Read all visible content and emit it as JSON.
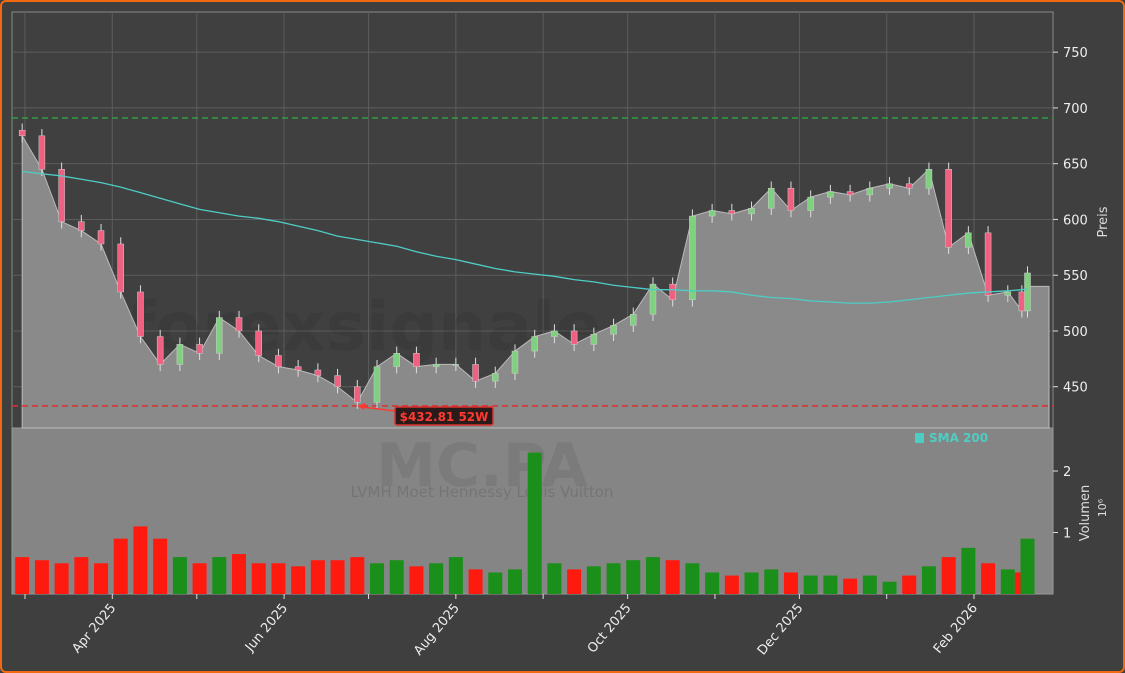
{
  "chart_data": {
    "type": "candlestick-line",
    "ticker": "MC.PA",
    "company": "LVMH Moet Hennessy Louis Vuitton",
    "watermark": "forexsignale.trade",
    "price_axis_label": "Preis",
    "volume_axis_label": "Volumen",
    "volume_multiplier_label": "10⁶",
    "price_ylim": [
      413,
      786
    ],
    "price_ticks": [
      450,
      500,
      550,
      600,
      650,
      700,
      750
    ],
    "volume_ylim": [
      0,
      2.7
    ],
    "volume_ticks": [
      1,
      2
    ],
    "x_tick_labels": [
      "Apr 2025",
      "Jun 2025",
      "Aug 2025",
      "Oct 2025",
      "Dec 2025",
      "Feb 2026"
    ],
    "x_tick_dates": [
      "2025-04-01",
      "2025-06-01",
      "2025-08-01",
      "2025-10-01",
      "2025-12-01",
      "2026-02-01"
    ],
    "grid": true,
    "legend": {
      "placement": "bottom-right of price panel",
      "entries": [
        {
          "name": "SMA 200",
          "color": "#4ecdc4"
        }
      ]
    },
    "hlines": [
      {
        "value": 691,
        "color": "#2ea043",
        "style": "dashed"
      },
      {
        "value": 432.81,
        "color": "#d9322f",
        "style": "dashed",
        "annotation": "$432.81 52W",
        "annotation_date": "2025-06-27"
      }
    ],
    "colors": {
      "up": "#7fd17f",
      "down": "#f06080",
      "volume_up": "#1a8f1a",
      "volume_down": "#ff1a10",
      "sma": "#4ecdc4",
      "area": "#8a8a8a"
    },
    "dates": [
      "2025-02-28",
      "2025-03-07",
      "2025-03-14",
      "2025-03-21",
      "2025-03-28",
      "2025-04-04",
      "2025-04-11",
      "2025-04-18",
      "2025-04-25",
      "2025-05-02",
      "2025-05-09",
      "2025-05-16",
      "2025-05-23",
      "2025-05-30",
      "2025-06-06",
      "2025-06-13",
      "2025-06-20",
      "2025-06-27",
      "2025-07-04",
      "2025-07-11",
      "2025-07-18",
      "2025-07-25",
      "2025-08-01",
      "2025-08-08",
      "2025-08-15",
      "2025-08-22",
      "2025-08-29",
      "2025-09-05",
      "2025-09-12",
      "2025-09-19",
      "2025-09-26",
      "2025-10-03",
      "2025-10-10",
      "2025-10-17",
      "2025-10-24",
      "2025-10-31",
      "2025-11-07",
      "2025-11-14",
      "2025-11-21",
      "2025-11-28",
      "2025-12-05",
      "2025-12-12",
      "2025-12-19",
      "2025-12-26",
      "2026-01-02",
      "2026-01-09",
      "2026-01-16",
      "2026-01-23",
      "2026-01-30",
      "2026-02-06",
      "2026-02-13",
      "2026-02-18",
      "2026-02-20"
    ],
    "close": [
      675,
      645,
      598,
      590,
      578,
      535,
      495,
      470,
      488,
      480,
      512,
      500,
      478,
      468,
      465,
      460,
      450,
      436,
      468,
      480,
      468,
      470,
      470,
      455,
      462,
      482,
      495,
      500,
      488,
      497,
      505,
      515,
      542,
      528,
      603,
      608,
      605,
      610,
      628,
      608,
      620,
      625,
      622,
      628,
      632,
      628,
      645,
      575,
      588,
      532,
      535,
      518,
      552
    ],
    "sma200": [
      643,
      641,
      639,
      636,
      633,
      629,
      624,
      619,
      614,
      609,
      606,
      603,
      601,
      598,
      594,
      590,
      585,
      582,
      579,
      576,
      571,
      567,
      564,
      560,
      556,
      553,
      551,
      549,
      546,
      544,
      541,
      539,
      537,
      537,
      536,
      536,
      535,
      532,
      530,
      529,
      527,
      526,
      525,
      525,
      526,
      528,
      530,
      532,
      534,
      535,
      536,
      537,
      538
    ],
    "volume_millions": [
      0.6,
      0.55,
      0.5,
      0.6,
      0.5,
      0.9,
      1.1,
      0.9,
      0.6,
      0.5,
      0.6,
      0.65,
      0.5,
      0.5,
      0.45,
      0.55,
      0.55,
      0.6,
      0.5,
      0.55,
      0.45,
      0.5,
      0.6,
      0.4,
      0.35,
      0.4,
      2.3,
      0.5,
      0.4,
      0.45,
      0.5,
      0.55,
      0.6,
      0.55,
      0.5,
      0.35,
      0.3,
      0.35,
      0.4,
      0.35,
      0.3,
      0.3,
      0.25,
      0.3,
      0.2,
      0.3,
      0.45,
      0.6,
      0.75,
      0.5,
      0.4,
      0.35,
      0.9
    ]
  }
}
